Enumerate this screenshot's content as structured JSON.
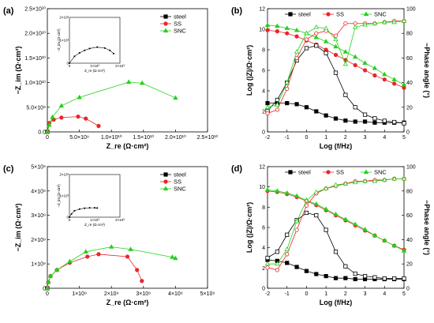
{
  "colors": {
    "steel": "#000000",
    "SS": "#e8252a",
    "SNC": "#23d11b"
  },
  "chart_data": [
    {
      "panel": "(a)",
      "type": "scatter",
      "xlabel": "Z_re (Ω·cm²)",
      "ylabel": "−Z_im (Ω·cm²)",
      "xlim": [
        0,
        25000000000.0
      ],
      "ylim": [
        0,
        25000000000.0
      ],
      "xticks": [
        0,
        5000000000.0,
        10000000000.0,
        15000000000.0,
        20000000000.0,
        25000000000.0
      ],
      "xtick_labels": [
        "0",
        "5.0×10⁹",
        "1.0×10¹⁰",
        "1.5×10¹⁰",
        "2.0×10¹⁰",
        "2.5×10¹⁰"
      ],
      "yticks": [
        0,
        5000000000.0,
        10000000000.0,
        15000000000.0,
        20000000000.0,
        25000000000.0
      ],
      "ytick_labels": [
        "0.0",
        "5.0×10⁹",
        "1.0×10¹⁰",
        "1.5×10¹⁰",
        "2.0×10¹⁰",
        "2.5×10¹⁰"
      ],
      "legend": "top-right",
      "series": [
        {
          "name": "steel",
          "marker": "square",
          "points": [
            [
              0,
              0
            ]
          ]
        },
        {
          "name": "SS",
          "marker": "circle",
          "points": [
            [
              0,
              0
            ],
            [
              300000000.0,
              1800000000.0
            ],
            [
              1000000000.0,
              2500000000.0
            ],
            [
              2200000000.0,
              2900000000.0
            ],
            [
              4800000000.0,
              3100000000.0
            ],
            [
              6000000000.0,
              2700000000.0
            ],
            [
              8000000000.0,
              1200000000.0
            ]
          ]
        },
        {
          "name": "SNC",
          "marker": "triangle",
          "points": [
            [
              0,
              0
            ],
            [
              300000000.0,
              1400000000.0
            ],
            [
              800000000.0,
              3000000000.0
            ],
            [
              2200000000.0,
              5300000000.0
            ],
            [
              5000000000.0,
              7000000000.0
            ],
            [
              12700000000.0,
              10100000000.0
            ],
            [
              14800000000.0,
              9900000000.0
            ],
            [
              20000000000.0,
              6900000000.0
            ]
          ]
        }
      ],
      "inset": {
        "xlabel": "Z_re (Ω·cm²)",
        "ylabel": "−Z_im (Ω·cm²)",
        "xtick_labels": [
          "0",
          "1×10³",
          "2×10³"
        ],
        "ytick_labels": [
          "0",
          "1×10³",
          "2×10³"
        ],
        "series": [
          {
            "name": "steel",
            "points": [
              [
                0,
                0
              ],
              [
                200,
                300
              ],
              [
                400,
                450
              ],
              [
                600,
                560
              ],
              [
                800,
                640
              ],
              [
                1100,
                700
              ],
              [
                1400,
                660
              ],
              [
                1600,
                560
              ],
              [
                1750,
                420
              ]
            ]
          }
        ]
      }
    },
    {
      "panel": "(b)",
      "type": "line",
      "xlabel": "Log (f/Hz)",
      "ylabel": "Log (|Z|/Ω·cm²)",
      "ylabel_right": "−Phase angle (°)",
      "xlim": [
        -2,
        5
      ],
      "ylim": [
        0,
        12
      ],
      "ylim_right": [
        0,
        100
      ],
      "xticks": [
        -2,
        -1,
        0,
        1,
        2,
        3,
        4,
        5
      ],
      "xtick_labels": [
        "-2",
        "-1",
        "0",
        "1",
        "2",
        "3",
        "4",
        "5"
      ],
      "yticks": [
        0,
        2,
        4,
        6,
        8,
        10,
        12
      ],
      "ytick_labels": [
        "0",
        "2",
        "4",
        "6",
        "8",
        "10",
        "12"
      ],
      "yticks_right": [
        0,
        20,
        40,
        60,
        80,
        100
      ],
      "ytick_labels_right": [
        "0",
        "20",
        "40",
        "60",
        "80",
        "100"
      ],
      "legend": "top",
      "x": [
        -2,
        -1.5,
        -1,
        -0.5,
        0,
        0.5,
        1,
        1.5,
        2,
        2.5,
        3,
        3.5,
        4,
        4.5,
        5
      ],
      "modulus": [
        {
          "name": "steel",
          "marker": "square",
          "values": [
            2.8,
            2.8,
            2.8,
            2.7,
            2.4,
            2.0,
            1.6,
            1.3,
            1.1,
            1.0,
            1.0,
            0.9,
            0.9,
            0.9,
            0.9
          ]
        },
        {
          "name": "SS",
          "marker": "circle",
          "values": [
            9.9,
            9.8,
            9.6,
            9.3,
            8.9,
            8.5,
            8.0,
            7.5,
            7.0,
            6.5,
            6.0,
            5.5,
            5.1,
            4.7,
            4.3
          ]
        },
        {
          "name": "SNC",
          "marker": "triangle",
          "values": [
            10.4,
            10.3,
            10.1,
            9.9,
            9.6,
            9.2,
            8.8,
            8.3,
            7.8,
            7.3,
            6.7,
            6.2,
            5.6,
            5.1,
            4.6
          ]
        }
      ],
      "phase": [
        {
          "name": "steel",
          "values": [
            17,
            26,
            40,
            58,
            68,
            70,
            64,
            48,
            30,
            20,
            14,
            11,
            9,
            8,
            7
          ]
        },
        {
          "name": "SS",
          "values": [
            15,
            18,
            35,
            60,
            75,
            80,
            82,
            78,
            88,
            88,
            88,
            88,
            89,
            90,
            90
          ]
        },
        {
          "name": "SNC",
          "values": [
            20,
            22,
            40,
            65,
            80,
            85,
            84,
            75,
            55,
            85,
            87,
            88,
            89,
            89,
            90
          ]
        }
      ]
    },
    {
      "panel": "(c)",
      "type": "scatter",
      "xlabel": "Z_re (Ω·cm²)",
      "ylabel": "−Z_im (Ω·cm²)",
      "xlim": [
        0,
        5000000000.0
      ],
      "ylim": [
        0,
        5000000000.0
      ],
      "xticks": [
        0,
        1000000000.0,
        2000000000.0,
        3000000000.0,
        4000000000.0,
        5000000000.0
      ],
      "xtick_labels": [
        "0",
        "1×10⁹",
        "2×10⁹",
        "3×10⁹",
        "4×10⁹",
        "5×10⁹"
      ],
      "yticks": [
        0,
        1000000000.0,
        2000000000.0,
        3000000000.0,
        4000000000.0,
        5000000000.0
      ],
      "ytick_labels": [
        "0",
        "1×10⁹",
        "2×10⁹",
        "3×10⁹",
        "4×10⁹",
        "5×10⁹"
      ],
      "legend": "top-right",
      "series": [
        {
          "name": "steel",
          "marker": "square",
          "points": [
            [
              0,
              0
            ]
          ]
        },
        {
          "name": "SS",
          "marker": "circle",
          "points": [
            [
              0,
              0
            ],
            [
              30000000.0,
              250000000.0
            ],
            [
              100000000.0,
              500000000.0
            ],
            [
              300000000.0,
              750000000.0
            ],
            [
              700000000.0,
              1050000000.0
            ],
            [
              1250000000.0,
              1300000000.0
            ],
            [
              1600000000.0,
              1400000000.0
            ],
            [
              2500000000.0,
              1300000000.0
            ],
            [
              2800000000.0,
              750000000.0
            ],
            [
              2950000000.0,
              300000000.0
            ]
          ]
        },
        {
          "name": "SNC",
          "marker": "triangle",
          "points": [
            [
              0,
              0
            ],
            [
              30000000.0,
              250000000.0
            ],
            [
              100000000.0,
              500000000.0
            ],
            [
              300000000.0,
              750000000.0
            ],
            [
              700000000.0,
              1100000000.0
            ],
            [
              1200000000.0,
              1500000000.0
            ],
            [
              2000000000.0,
              1700000000.0
            ],
            [
              2600000000.0,
              1600000000.0
            ],
            [
              3900000000.0,
              1280000000.0
            ],
            [
              4000000000.0,
              1230000000.0
            ]
          ]
        }
      ],
      "inset": {
        "xlabel": "Z_re (Ω·cm²)",
        "ylabel": "−Z_im (Ω·cm²)",
        "xtick_labels": [
          "0",
          "1×10³",
          "2×10³"
        ],
        "ytick_labels": [
          "0",
          "1×10³",
          "2×10³"
        ],
        "series": [
          {
            "name": "steel",
            "points": [
              [
                0,
                0
              ],
              [
                80,
                150
              ],
              [
                200,
                300
              ],
              [
                400,
                380
              ],
              [
                600,
                420
              ],
              [
                800,
                440
              ],
              [
                1000,
                440
              ],
              [
                1100,
                430
              ]
            ]
          }
        ]
      }
    },
    {
      "panel": "(d)",
      "type": "line",
      "xlabel": "Log (f/Hz)",
      "ylabel": "Log (|Z|/Ω·cm²)",
      "ylabel_right": "−Phase angle (°)",
      "xlim": [
        -2,
        5
      ],
      "ylim": [
        0,
        12
      ],
      "ylim_right": [
        0,
        100
      ],
      "xticks": [
        -2,
        -1,
        0,
        1,
        2,
        3,
        4,
        5
      ],
      "xtick_labels": [
        "-2",
        "-1",
        "0",
        "1",
        "2",
        "3",
        "4",
        "5"
      ],
      "yticks": [
        0,
        2,
        4,
        6,
        8,
        10,
        12
      ],
      "ytick_labels": [
        "0",
        "2",
        "4",
        "6",
        "8",
        "10",
        "12"
      ],
      "yticks_right": [
        0,
        20,
        40,
        60,
        80,
        100
      ],
      "ytick_labels_right": [
        "0",
        "20",
        "40",
        "60",
        "80",
        "100"
      ],
      "legend": "top",
      "x": [
        -2,
        -1.5,
        -1,
        -0.5,
        0,
        0.5,
        1,
        1.5,
        2,
        2.5,
        3,
        3.5,
        4,
        4.5,
        5
      ],
      "modulus": [
        {
          "name": "steel",
          "marker": "square",
          "values": [
            2.8,
            2.7,
            2.5,
            2.1,
            1.7,
            1.4,
            1.2,
            1.0,
            1.0,
            0.9,
            0.9,
            0.9,
            0.9,
            0.9,
            0.9
          ]
        },
        {
          "name": "SS",
          "marker": "circle",
          "values": [
            9.6,
            9.5,
            9.3,
            9.0,
            8.6,
            8.2,
            7.7,
            7.2,
            6.7,
            6.2,
            5.7,
            5.2,
            4.7,
            4.2,
            3.8
          ]
        },
        {
          "name": "SNC",
          "marker": "triangle",
          "values": [
            9.7,
            9.6,
            9.4,
            9.1,
            8.7,
            8.3,
            7.8,
            7.3,
            6.8,
            6.3,
            5.8,
            5.2,
            4.7,
            4.2,
            3.7
          ]
        }
      ],
      "phase": [
        {
          "name": "steel",
          "values": [
            25,
            30,
            44,
            56,
            62,
            60,
            48,
            30,
            18,
            12,
            10,
            9,
            8,
            8,
            8
          ]
        },
        {
          "name": "SS",
          "values": [
            17,
            15,
            28,
            48,
            68,
            78,
            82,
            84,
            86,
            88,
            88,
            89,
            89,
            90,
            90
          ]
        },
        {
          "name": "SNC",
          "values": [
            20,
            20,
            32,
            55,
            72,
            79,
            82,
            85,
            86,
            87,
            88,
            88,
            89,
            90,
            90
          ]
        }
      ]
    }
  ]
}
